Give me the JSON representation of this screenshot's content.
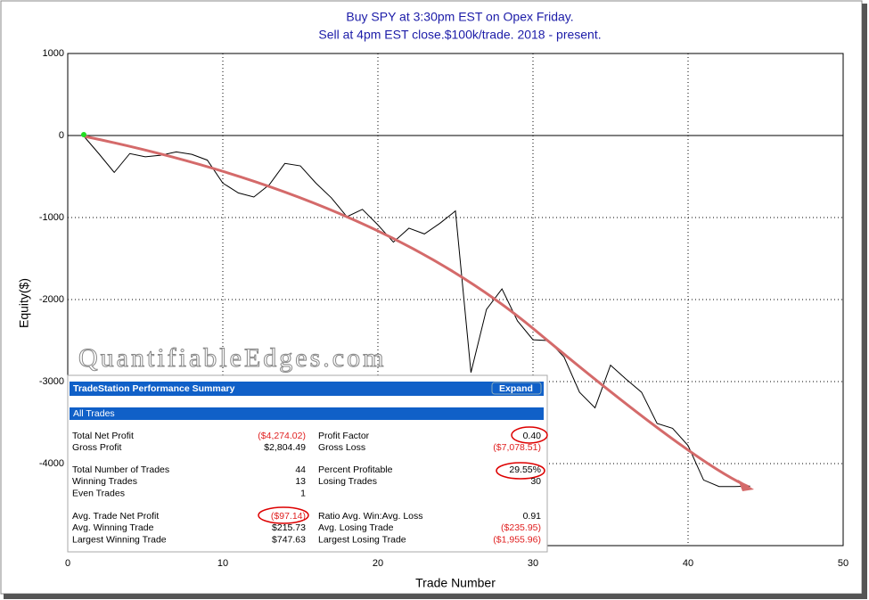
{
  "chart_data": {
    "type": "line",
    "title": [
      "Buy SPY at 3:30pm EST on Opex Friday.",
      "Sell at 4pm EST close.$100k/trade. 2018 - present."
    ],
    "x_label": "Trade Number",
    "y_label": "Equity($)",
    "x": [
      1,
      2,
      3,
      4,
      5,
      6,
      7,
      8,
      9,
      10,
      11,
      12,
      13,
      14,
      15,
      16,
      17,
      18,
      19,
      20,
      21,
      22,
      23,
      24,
      25,
      26,
      27,
      28,
      29,
      30,
      31,
      32,
      33,
      34,
      35,
      36,
      37,
      38,
      39,
      40,
      41,
      42,
      43,
      44
    ],
    "series": [
      {
        "name": "Equity",
        "color": "#000000",
        "values": [
          0,
          -220,
          -450,
          -220,
          -260,
          -240,
          -200,
          -230,
          -300,
          -580,
          -700,
          -750,
          -600,
          -340,
          -370,
          -580,
          -760,
          -990,
          -900,
          -1090,
          -1300,
          -1130,
          -1200,
          -1070,
          -920,
          -2890,
          -2120,
          -1870,
          -2260,
          -2490,
          -2500,
          -2700,
          -3130,
          -3320,
          -2800,
          -2970,
          -3130,
          -3510,
          -3570,
          -3780,
          -4200,
          -4280,
          -4280,
          -4274
        ]
      }
    ],
    "xlim": [
      0,
      50
    ],
    "xticks": [
      0,
      10,
      20,
      30,
      40,
      50
    ],
    "ylim": [
      -5000,
      1000
    ],
    "yticks": [
      1000,
      0,
      -1000,
      -2000,
      -3000,
      -4000
    ],
    "grid": true
  },
  "watermark": "QuantifiableEdges.com",
  "summary": {
    "title": "TradeStation Performance Summary",
    "expand": "Expand",
    "section": "All Trades",
    "groups": [
      [
        [
          "Total Net Profit",
          "($4,274.02)",
          "Profit Factor",
          "0.40"
        ],
        [
          "Gross Profit",
          "$2,804.49",
          "Gross Loss",
          "($7,078.51)"
        ]
      ],
      [
        [
          "Total Number of Trades",
          "44",
          "Percent Profitable",
          "29.55%"
        ],
        [
          "Winning Trades",
          "13",
          "Losing Trades",
          "30"
        ],
        [
          "Even Trades",
          "1"
        ]
      ],
      [
        [
          "Avg. Trade Net Profit",
          "($97.14)",
          "Ratio Avg. Win:Avg. Loss",
          "0.91"
        ],
        [
          "Avg. Winning Trade",
          "$215.73",
          "Avg. Losing Trade",
          "($235.95)"
        ],
        [
          "Largest Winning Trade",
          "$747.63",
          "Largest Losing Trade",
          "($1,955.96)"
        ]
      ]
    ]
  }
}
